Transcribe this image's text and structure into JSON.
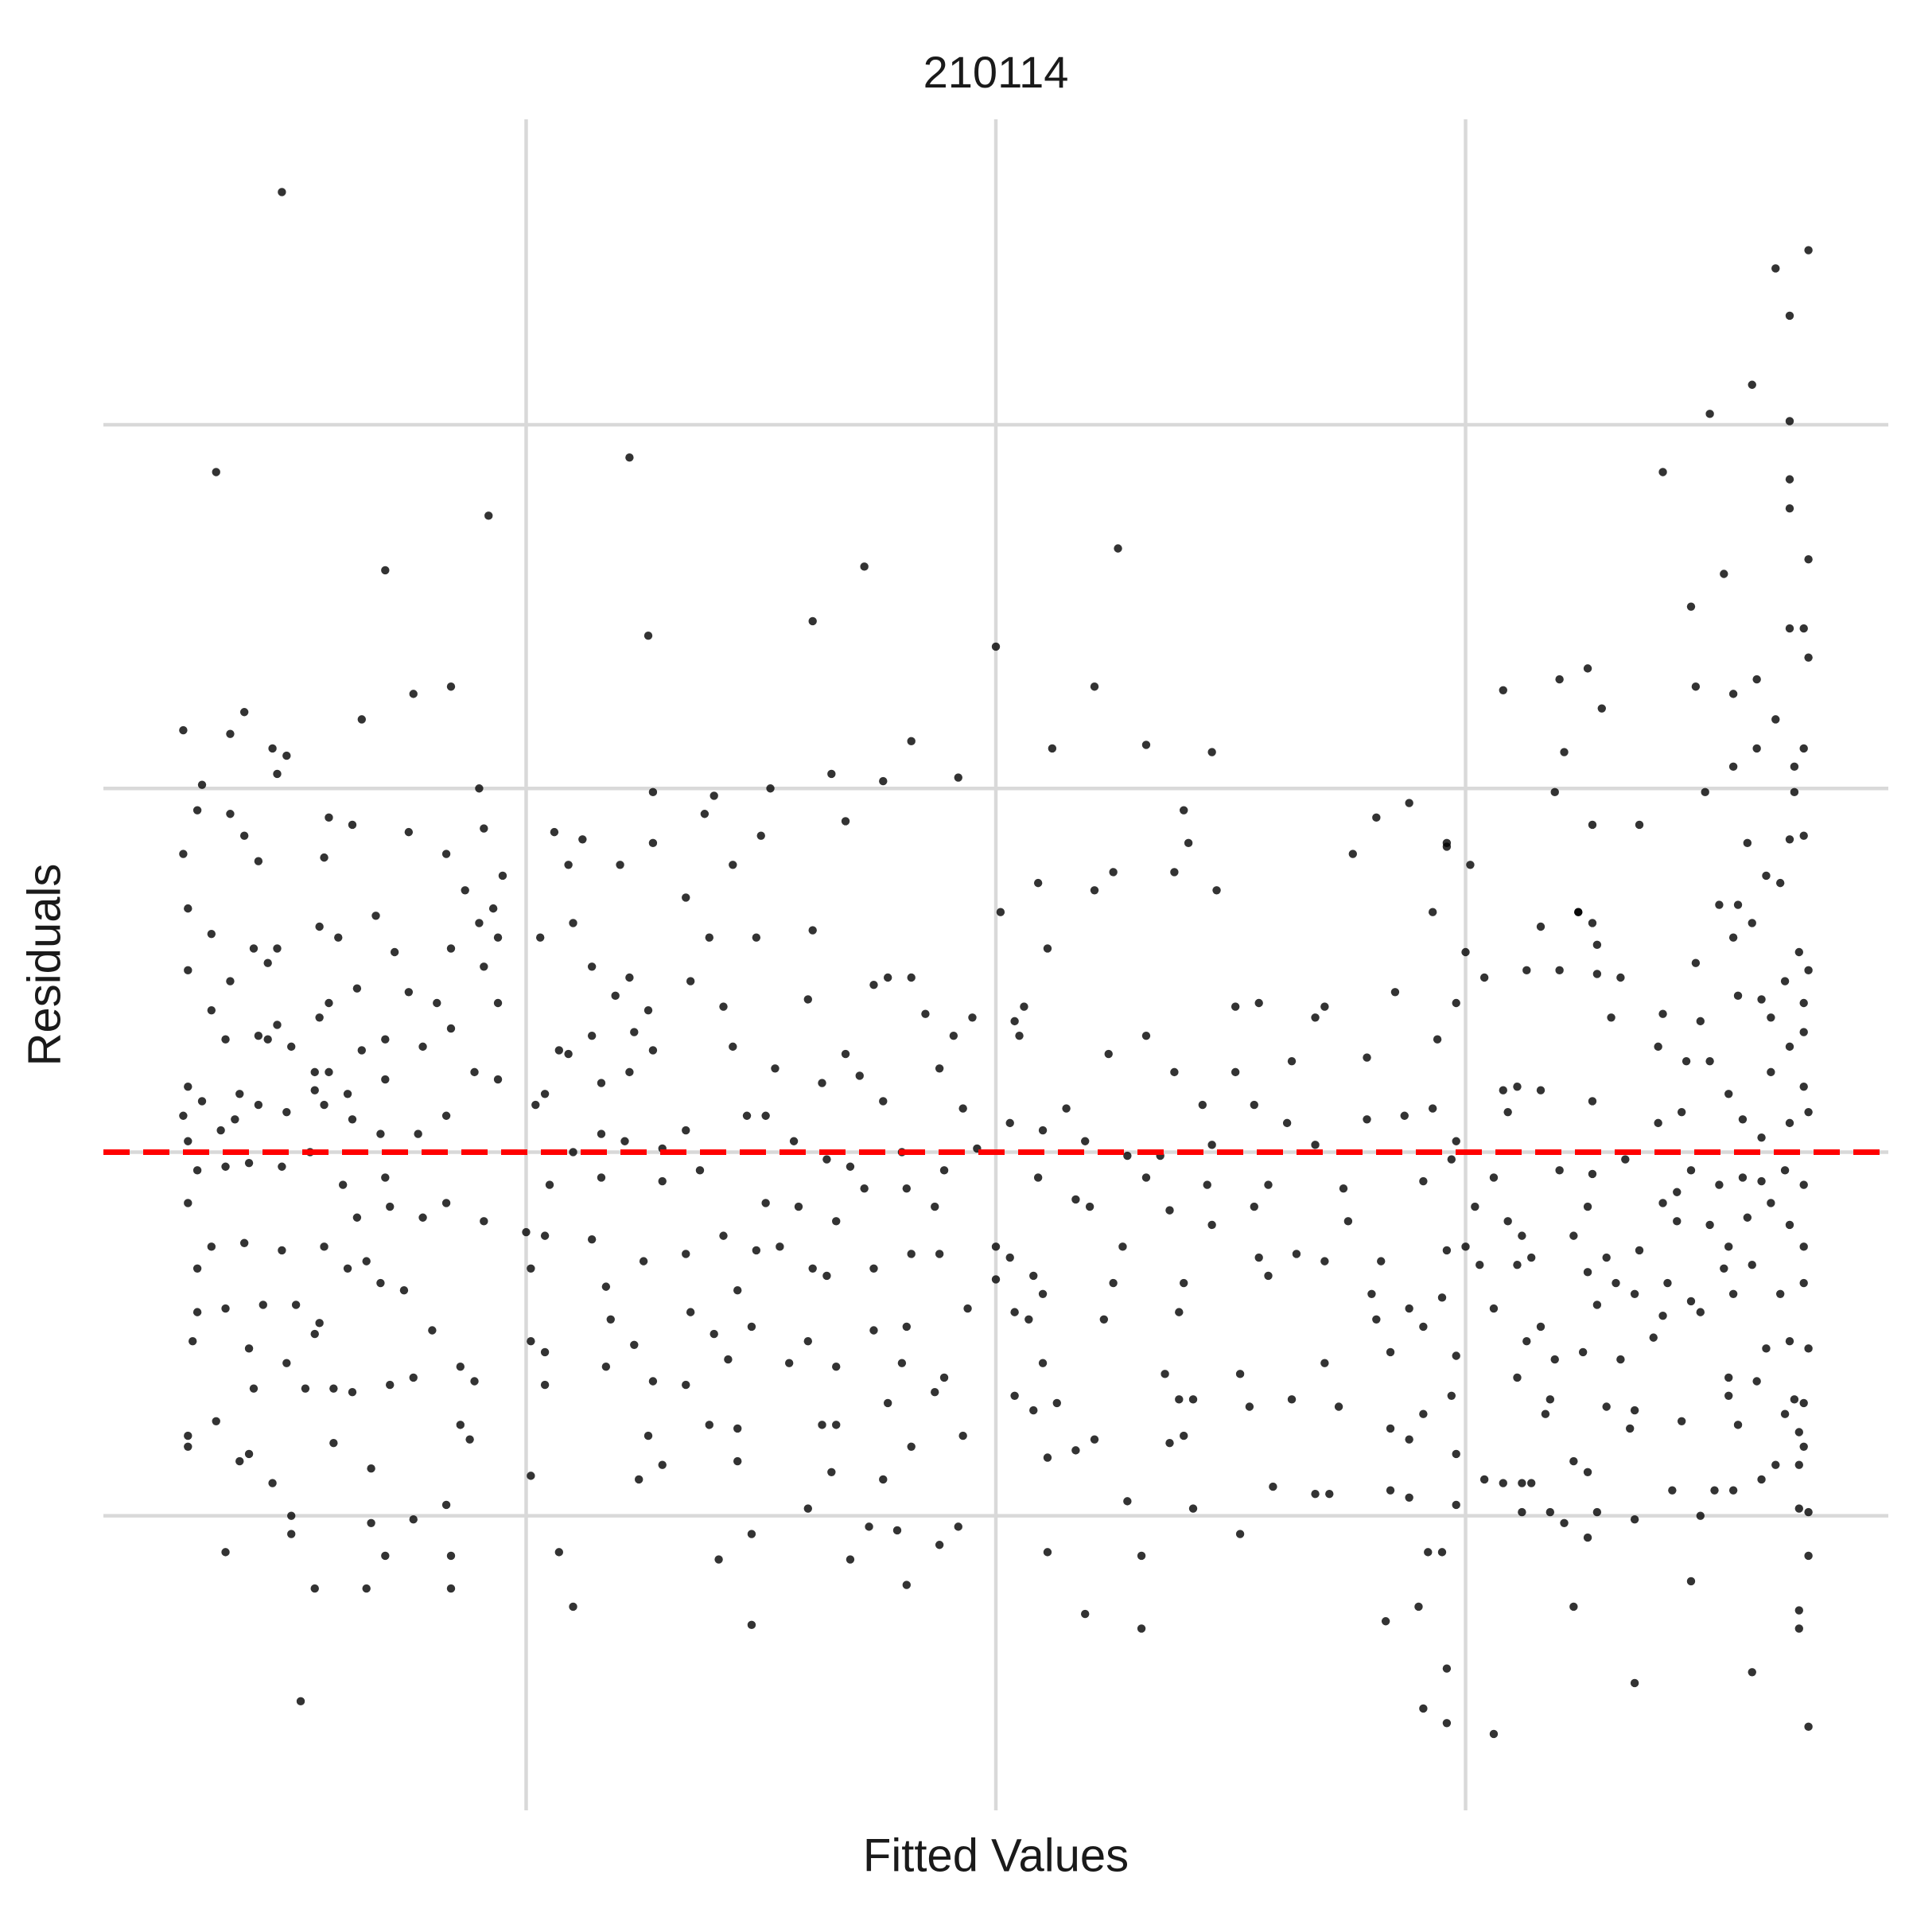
{
  "chart_data": {
    "type": "scatter",
    "title": "210114",
    "x_label": "Fitted Values",
    "y_label": "Residuals",
    "color": "#000000",
    "opacity": 0.8,
    "grid": true,
    "xlim": [
      0.1,
      3.9
    ],
    "ylim": [
      -1.81,
      2.84
    ],
    "xticks": [
      1,
      2,
      3
    ],
    "yticks": [
      -1,
      0,
      1,
      2
    ],
    "reference_line": {
      "y": 0,
      "color": "#ff0000",
      "dashed": true
    },
    "x": [
      0.48,
      3.73,
      3.66,
      3.69,
      3.61,
      3.52,
      3.69,
      3.42,
      0.34,
      1.22,
      0.92,
      3.69,
      3.69,
      2.26,
      0.7,
      1.72,
      3.73,
      3.55,
      3.48,
      1.61,
      1.26,
      3.69,
      3.72,
      2.0,
      3.73,
      2.21,
      3.08,
      3.2,
      3.26,
      3.29,
      0.84,
      0.76,
      0.27,
      0.4,
      0.65,
      0.46,
      0.49,
      0.37,
      0.47,
      0.31,
      1.82,
      2.12,
      2.32,
      2.46,
      3.49,
      3.57,
      3.62,
      3.66,
      3.21,
      3.62,
      0.9,
      1.52,
      1.65,
      1.76,
      1.92,
      3.57,
      3.7,
      3.72,
      3.19,
      3.51,
      3.7,
      0.27,
      0.3,
      0.37,
      0.4,
      0.43,
      0.58,
      0.57,
      0.63,
      0.75,
      0.83,
      0.91,
      0.95,
      1.06,
      1.12,
      1.09,
      1.2,
      1.27,
      1.27,
      1.38,
      1.4,
      1.44,
      1.5,
      1.68,
      2.01,
      2.09,
      2.25,
      2.21,
      2.38,
      2.4,
      2.41,
      2.47,
      2.76,
      2.81,
      2.88,
      2.96,
      3.01,
      2.93,
      3.24,
      3.27,
      3.37,
      3.6,
      3.64,
      3.67,
      3.69,
      3.72,
      0.28,
      0.28,
      0.33,
      0.33,
      0.37,
      0.36,
      0.42,
      0.45,
      0.47,
      0.43,
      0.45,
      0.5,
      0.47,
      0.56,
      0.6,
      0.56,
      0.58,
      0.55,
      0.58,
      0.64,
      0.65,
      0.68,
      0.72,
      0.75,
      0.7,
      0.78,
      0.81,
      0.84,
      0.87,
      0.93,
      0.9,
      0.94,
      0.94,
      0.91,
      0.84,
      0.89,
      0.94,
      0.27,
      0.28,
      0.28,
      0.31,
      0.35,
      0.39,
      0.38,
      0.43,
      0.49,
      0.55,
      0.57,
      0.62,
      0.63,
      0.69,
      0.7,
      0.77,
      0.83,
      0.3,
      0.36,
      0.41,
      0.48,
      0.54,
      0.61,
      0.7,
      0.78,
      0.83,
      0.91,
      0.28,
      0.33,
      0.3,
      0.4,
      0.48,
      0.57,
      0.64,
      0.71,
      0.3,
      0.36,
      0.29,
      0.41,
      0.44,
      0.51,
      0.56,
      0.55,
      0.62,
      0.66,
      0.69,
      0.74,
      0.8,
      0.49,
      0.53,
      0.42,
      0.59,
      0.63,
      0.71,
      0.76,
      0.86,
      0.89,
      0.28,
      0.34,
      0.39,
      0.41,
      0.46,
      0.59,
      0.67,
      0.28,
      0.86,
      0.88,
      0.5,
      0.5,
      0.36,
      0.55,
      0.66,
      0.7,
      0.67,
      0.76,
      0.83,
      0.84,
      0.84,
      0.52,
      1.03,
      1.1,
      1.14,
      1.19,
      1.22,
      1.23,
      1.26,
      1.07,
      1.09,
      1.14,
      1.04,
      1.02,
      1.16,
      1.22,
      1.27,
      1.34,
      1.39,
      1.35,
      1.42,
      1.44,
      1.49,
      1.61,
      1.6,
      1.53,
      1.51,
      1.63,
      1.68,
      1.71,
      1.74,
      1.77,
      1.82,
      1.85,
      1.88,
      1.91,
      1.95,
      1.76,
      1.93,
      1.1,
      1.16,
      1.21,
      1.29,
      1.34,
      1.47,
      1.57,
      1.64,
      1.69,
      1.8,
      1.89,
      1.96,
      1.05,
      1.16,
      1.29,
      1.37,
      1.51,
      1.58,
      1.66,
      1.72,
      1.81,
      1.87,
      1.0,
      1.04,
      1.01,
      1.14,
      1.17,
      1.25,
      1.34,
      1.42,
      1.49,
      1.54,
      1.61,
      1.64,
      1.74,
      1.82,
      1.88,
      1.94,
      1.01,
      1.04,
      1.18,
      1.23,
      1.35,
      1.4,
      1.43,
      1.45,
      1.48,
      1.56,
      1.6,
      1.66,
      1.74,
      1.81,
      1.8,
      1.17,
      1.27,
      1.34,
      1.04,
      1.39,
      1.45,
      1.63,
      1.66,
      1.77,
      1.87,
      1.89,
      1.26,
      1.29,
      1.24,
      1.45,
      1.65,
      1.76,
      1.82,
      1.93,
      1.01,
      1.07,
      1.1,
      1.41,
      1.48,
      1.48,
      1.6,
      1.69,
      1.73,
      1.79,
      1.81,
      1.88,
      1.92,
      2.04,
      2.06,
      2.05,
      2.11,
      2.24,
      2.32,
      2.38,
      2.44,
      2.51,
      2.56,
      2.51,
      2.55,
      2.63,
      2.68,
      2.7,
      2.79,
      2.85,
      2.87,
      2.93,
      2.94,
      2.98,
      3.0,
      2.96,
      2.03,
      2.1,
      2.15,
      2.19,
      2.28,
      2.35,
      2.46,
      2.62,
      2.68,
      2.79,
      2.98,
      2.09,
      2.17,
      2.32,
      2.45,
      2.58,
      2.74,
      2.91,
      2.97,
      2.0,
      2.03,
      2.0,
      2.08,
      2.1,
      2.2,
      2.27,
      2.37,
      2.46,
      2.55,
      2.56,
      2.58,
      2.64,
      2.7,
      2.75,
      2.8,
      2.82,
      2.96,
      3.0,
      2.04,
      2.07,
      2.1,
      2.23,
      2.25,
      2.39,
      2.4,
      2.52,
      2.7,
      2.81,
      2.88,
      2.84,
      2.91,
      2.95,
      2.98,
      2.04,
      2.08,
      2.13,
      2.36,
      2.39,
      2.42,
      2.54,
      2.63,
      2.73,
      2.84,
      2.91,
      2.97,
      2.88,
      2.37,
      2.4,
      2.11,
      2.17,
      2.21,
      2.98,
      2.59,
      2.68,
      2.71,
      2.84,
      2.88,
      2.98,
      2.28,
      2.42,
      2.11,
      2.31,
      2.52,
      2.92,
      2.95,
      2.19,
      2.31,
      2.83,
      2.9,
      2.96,
      2.91,
      2.96,
      3.06,
      3.04,
      3.13,
      3.16,
      3.2,
      3.24,
      3.27,
      3.28,
      3.31,
      3.33,
      3.28,
      3.41,
      3.42,
      3.47,
      3.5,
      3.52,
      3.49,
      3.54,
      3.57,
      3.58,
      3.61,
      3.58,
      3.63,
      3.65,
      3.68,
      3.71,
      3.73,
      3.72,
      3.69,
      3.72,
      3.65,
      3.72,
      3.08,
      3.11,
      3.16,
      3.09,
      3.27,
      3.41,
      3.46,
      3.56,
      3.59,
      3.63,
      3.69,
      3.73,
      3.06,
      3.2,
      3.27,
      3.34,
      3.45,
      3.48,
      3.54,
      3.59,
      3.63,
      3.68,
      3.72,
      3.02,
      3.09,
      3.12,
      3.14,
      3.23,
      3.26,
      3.3,
      3.37,
      3.42,
      3.45,
      3.52,
      3.56,
      3.6,
      3.65,
      3.69,
      3.72,
      3.03,
      3.06,
      3.11,
      3.26,
      3.28,
      3.32,
      3.36,
      3.43,
      3.48,
      3.55,
      3.57,
      3.61,
      3.67,
      3.72,
      3.13,
      3.16,
      3.19,
      3.25,
      3.33,
      3.4,
      3.42,
      3.5,
      3.56,
      3.64,
      3.69,
      3.73,
      3.11,
      3.18,
      3.17,
      3.3,
      3.36,
      3.46,
      3.56,
      3.62,
      3.7,
      3.72,
      3.68,
      3.23,
      3.26,
      3.35,
      3.58,
      3.71,
      3.72,
      3.66,
      3.71,
      3.04,
      3.08,
      3.12,
      3.14,
      3.12,
      3.18,
      3.21,
      3.26,
      3.28,
      3.36,
      3.44,
      3.5,
      3.53,
      3.57,
      3.63,
      3.71,
      3.73,
      3.73,
      3.23,
      3.48,
      3.71,
      3.71,
      3.36,
      3.61,
      3.73
    ],
    "values": [
      2.64,
      2.48,
      2.43,
      2.3,
      2.11,
      2.03,
      2.01,
      1.87,
      1.87,
      1.91,
      1.75,
      1.85,
      1.77,
      1.66,
      1.6,
      1.61,
      1.63,
      1.59,
      1.5,
      1.46,
      1.42,
      1.44,
      1.44,
      1.39,
      1.36,
      1.28,
      1.27,
      1.3,
      1.33,
      1.22,
      1.28,
      1.26,
      1.16,
      1.21,
      1.19,
      1.11,
      1.09,
      1.15,
      1.04,
      1.01,
      1.13,
      1.11,
      1.12,
      1.1,
      1.28,
      1.26,
      1.3,
      1.19,
      1.1,
      1.11,
      1.0,
      1.0,
      1.04,
      1.02,
      1.03,
      1.06,
      1.06,
      1.11,
      0.99,
      0.99,
      0.99,
      0.82,
      0.94,
      0.93,
      0.87,
      0.8,
      0.92,
      0.81,
      0.9,
      0.88,
      0.82,
      0.89,
      0.76,
      0.88,
      0.86,
      0.79,
      0.79,
      0.85,
      0.99,
      0.93,
      0.98,
      0.79,
      0.87,
      0.91,
      0.66,
      0.74,
      0.77,
      0.72,
      0.77,
      0.94,
      0.85,
      0.72,
      0.82,
      0.92,
      0.96,
      0.84,
      0.79,
      0.66,
      0.66,
      0.9,
      0.9,
      0.85,
      0.76,
      0.74,
      0.86,
      0.87,
      0.67,
      0.5,
      0.6,
      0.39,
      0.47,
      0.31,
      0.56,
      0.52,
      0.56,
      0.32,
      0.31,
      0.29,
      0.35,
      0.62,
      0.59,
      0.37,
      0.41,
      0.22,
      0.22,
      0.45,
      0.28,
      0.65,
      0.55,
      0.44,
      0.31,
      0.29,
      0.41,
      0.56,
      0.72,
      0.67,
      0.63,
      0.59,
      0.41,
      0.51,
      0.34,
      0.22,
      0.2,
      0.1,
      0.18,
      0.03,
      0.14,
      0.06,
      0.16,
      0.09,
      0.13,
      0.11,
      0.17,
      0.13,
      0.16,
      0.09,
      0.05,
      0.2,
      0.05,
      0.1,
      -0.05,
      -0.04,
      -0.03,
      -0.04,
      0.0,
      -0.09,
      -0.07,
      -0.18,
      -0.14,
      -0.19,
      -0.14,
      -0.26,
      -0.32,
      -0.25,
      -0.27,
      -0.26,
      -0.18,
      -0.15,
      -0.44,
      -0.43,
      -0.52,
      -0.54,
      -0.42,
      -0.42,
      -0.47,
      -0.5,
      -0.32,
      -0.3,
      -0.36,
      -0.38,
      -0.49,
      -0.58,
      -0.65,
      -0.65,
      -0.65,
      -0.66,
      -0.64,
      -0.62,
      -0.59,
      -0.63,
      -0.78,
      -0.74,
      -0.85,
      -0.83,
      -0.91,
      -0.8,
      -0.87,
      -0.81,
      -0.75,
      -0.79,
      -1.0,
      -1.05,
      -1.1,
      -1.2,
      -1.2,
      -1.11,
      -1.02,
      -1.01,
      -0.97,
      -1.11,
      -1.2,
      -1.51,
      0.59,
      0.63,
      0.51,
      0.43,
      0.48,
      0.33,
      0.39,
      0.28,
      0.27,
      0.32,
      0.16,
      0.13,
      0.19,
      0.22,
      0.28,
      0.7,
      0.59,
      0.47,
      0.4,
      0.29,
      0.59,
      0.61,
      0.42,
      0.23,
      0.1,
      0.19,
      0.27,
      0.21,
      0.46,
      0.48,
      0.48,
      0.38,
      0.23,
      0.32,
      0.37,
      0.14,
      0.12,
      0.0,
      0.05,
      0.03,
      0.01,
      0.06,
      0.1,
      0.03,
      -0.02,
      -0.04,
      0.0,
      -0.05,
      0.01,
      -0.09,
      -0.07,
      -0.08,
      -0.05,
      -0.14,
      -0.15,
      -0.19,
      -0.1,
      -0.1,
      -0.15,
      -0.22,
      -0.23,
      -0.32,
      -0.24,
      -0.37,
      -0.3,
      -0.28,
      -0.23,
      -0.27,
      -0.26,
      -0.32,
      -0.34,
      -0.32,
      -0.28,
      -0.28,
      -0.43,
      -0.52,
      -0.55,
      -0.46,
      -0.53,
      -0.44,
      -0.5,
      -0.57,
      -0.38,
      -0.48,
      -0.58,
      -0.52,
      -0.59,
      -0.49,
      -0.48,
      -0.58,
      -0.59,
      -0.63,
      -0.64,
      -0.64,
      -0.75,
      -0.76,
      -0.75,
      -0.75,
      -0.69,
      -0.66,
      -0.62,
      -0.78,
      -0.86,
      -0.9,
      -0.85,
      -0.88,
      -0.9,
      -0.81,
      -0.78,
      -0.89,
      -1.1,
      -1.25,
      -1.12,
      -1.05,
      -1.3,
      -0.98,
      -1.12,
      -1.03,
      -1.04,
      -1.19,
      -1.08,
      -1.03,
      0.36,
      0.4,
      0.32,
      0.56,
      0.27,
      0.32,
      0.22,
      0.13,
      0.4,
      0.41,
      0.22,
      0.13,
      0.25,
      0.37,
      0.4,
      0.26,
      0.44,
      0.1,
      0.12,
      0.31,
      0.41,
      0.55,
      0.85,
      0.08,
      0.06,
      0.12,
      0.03,
      -0.01,
      -0.01,
      0.02,
      0.08,
      0.02,
      0.09,
      0.03,
      -0.07,
      -0.13,
      -0.07,
      -0.09,
      -0.09,
      -0.1,
      -0.08,
      -0.02,
      -0.26,
      -0.29,
      -0.35,
      -0.34,
      -0.39,
      -0.15,
      -0.26,
      -0.16,
      -0.2,
      -0.15,
      -0.29,
      -0.34,
      -0.28,
      -0.3,
      -0.19,
      -0.39,
      -0.3,
      -0.27,
      -0.26,
      -0.44,
      -0.46,
      -0.58,
      -0.46,
      -0.36,
      -0.44,
      -0.36,
      -0.61,
      -0.58,
      -0.46,
      -0.43,
      -0.55,
      -0.48,
      -0.4,
      -0.56,
      -0.67,
      -0.71,
      -0.69,
      -0.61,
      -0.68,
      -0.68,
      -0.7,
      -0.68,
      -0.7,
      -0.76,
      -0.72,
      -0.67,
      -0.79,
      -0.8,
      -0.78,
      -0.84,
      -0.82,
      -0.79,
      -0.83,
      -0.92,
      -0.94,
      -0.94,
      -0.93,
      -0.95,
      -0.97,
      -0.96,
      -0.98,
      -1.1,
      -1.11,
      -1.05,
      -1.1,
      -1.1,
      -1.27,
      -1.31,
      -1.29,
      -1.25,
      -1.42,
      -1.53,
      -1.57,
      -1.6,
      0.48,
      0.5,
      0.62,
      0.5,
      0.66,
      0.63,
      0.49,
      0.37,
      0.48,
      0.57,
      0.29,
      0.38,
      0.25,
      0.36,
      0.25,
      0.52,
      0.68,
      0.59,
      0.68,
      0.63,
      0.43,
      0.42,
      0.37,
      0.47,
      0.55,
      0.5,
      0.41,
      0.29,
      0.33,
      0.22,
      0.18,
      0.17,
      0.18,
      0.17,
      0.11,
      0.14,
      0.08,
      0.11,
      0.16,
      0.09,
      0.04,
      0.08,
      0.11,
      -0.07,
      -0.05,
      -0.06,
      -0.02,
      -0.11,
      -0.05,
      -0.09,
      -0.07,
      -0.08,
      -0.05,
      -0.09,
      -0.15,
      -0.19,
      -0.23,
      -0.29,
      -0.23,
      -0.15,
      -0.29,
      -0.27,
      -0.14,
      -0.19,
      -0.2,
      -0.26,
      -0.18,
      -0.14,
      -0.2,
      -0.26,
      -0.31,
      -0.43,
      -0.31,
      -0.33,
      -0.42,
      -0.36,
      -0.39,
      -0.36,
      -0.41,
      -0.32,
      -0.39,
      -0.31,
      -0.39,
      -0.36,
      -0.52,
      -0.48,
      -0.57,
      -0.55,
      -0.57,
      -0.51,
      -0.45,
      -0.44,
      -0.62,
      -0.54,
      -0.52,
      -0.54,
      -0.62,
      -0.68,
      -0.72,
      -0.7,
      -0.71,
      -0.74,
      -0.67,
      -0.63,
      -0.68,
      -0.69,
      -0.72,
      -0.85,
      -0.88,
      -0.76,
      -0.75,
      -0.77,
      -0.81,
      -0.86,
      -0.86,
      -0.9,
      -0.91,
      -0.91,
      -0.91,
      -0.99,
      -0.99,
      -1.02,
      -1.06,
      -0.99,
      -1.01,
      -0.93,
      -1.0,
      -0.93,
      -0.93,
      -0.9,
      -0.98,
      -0.99,
      -1.11,
      -1.25,
      -1.18,
      -1.26,
      -1.31,
      -1.46,
      -1.43,
      -1.58
    ]
  }
}
